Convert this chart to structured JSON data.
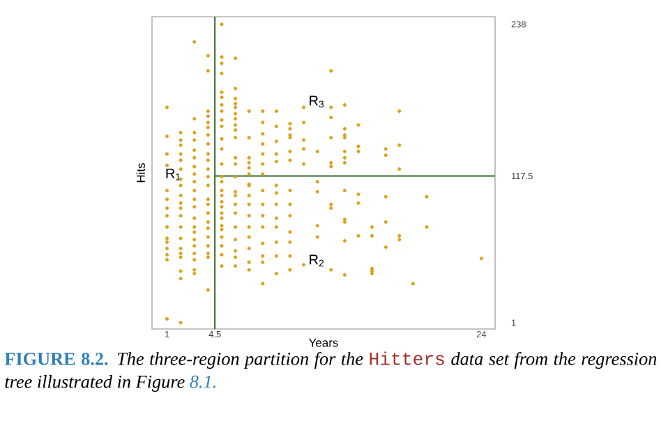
{
  "chart_data": {
    "type": "scatter",
    "xlabel": "Years",
    "ylabel": "Hits",
    "xlim": [
      -0.1,
      25
    ],
    "ylim": [
      -4,
      244
    ],
    "xticks": [
      1,
      4.5,
      24
    ],
    "yticks": [
      1,
      117.5,
      238
    ],
    "series": [
      {
        "color": "#d9a21b",
        "x": [
          1,
          1,
          1,
          1,
          1,
          1,
          1,
          1,
          1,
          1,
          1,
          1,
          1,
          1,
          1,
          2,
          2,
          2,
          2,
          2,
          2,
          2,
          2,
          2,
          2,
          2,
          2,
          2,
          2,
          2,
          2,
          2,
          2,
          2,
          2,
          3,
          3,
          3,
          3,
          3,
          3,
          3,
          3,
          3,
          3,
          3,
          3,
          3,
          3,
          3,
          3,
          3,
          3,
          3,
          3,
          3,
          4,
          4,
          4,
          4,
          4,
          4,
          4,
          4,
          4,
          4,
          4,
          4,
          4,
          4,
          4,
          4,
          4,
          4,
          4,
          4,
          4,
          4,
          4,
          5,
          5,
          5,
          5,
          5,
          5,
          5,
          5,
          5,
          5,
          5,
          5,
          5,
          5,
          5,
          5,
          5,
          5,
          5,
          5,
          5,
          5,
          5,
          5,
          5,
          5,
          5,
          6,
          6,
          6,
          6,
          6,
          6,
          6,
          6,
          6,
          6,
          6,
          6,
          6,
          6,
          6,
          6,
          6,
          6,
          6,
          6,
          6,
          6,
          7,
          7,
          7,
          7,
          7,
          7,
          7,
          7,
          7,
          7,
          7,
          7,
          7,
          7,
          7,
          7,
          8,
          8,
          8,
          8,
          8,
          8,
          8,
          8,
          8,
          8,
          8,
          8,
          8,
          8,
          8,
          9,
          9,
          9,
          9,
          9,
          9,
          9,
          9,
          9,
          9,
          9,
          9,
          9,
          10,
          10,
          10,
          10,
          10,
          10,
          10,
          10,
          10,
          10,
          10,
          10,
          10,
          11,
          11,
          11,
          11,
          11,
          11,
          12,
          12,
          12,
          12,
          12,
          13,
          13,
          13,
          13,
          13,
          13,
          13,
          13,
          13,
          14,
          14,
          14,
          14,
          14,
          14,
          14,
          14,
          14,
          14,
          14,
          14,
          15,
          15,
          15,
          15,
          15,
          15,
          16,
          16,
          16,
          16,
          16,
          17,
          17,
          17,
          17,
          17,
          18,
          18,
          18,
          18,
          18,
          19,
          20,
          20,
          24
        ],
        "values": [
          172,
          149,
          135,
          126,
          106,
          99,
          92,
          86,
          77,
          68,
          65,
          60,
          55,
          51,
          4,
          152,
          146,
          142,
          135,
          130,
          123,
          115,
          110,
          102,
          96,
          92,
          86,
          77,
          68,
          60,
          56,
          53,
          42,
          36,
          1,
          224,
          163,
          152,
          146,
          138,
          132,
          125,
          119,
          113,
          106,
          99,
          93,
          84,
          77,
          73,
          67,
          62,
          56,
          51,
          43,
          40,
          213,
          201,
          169,
          165,
          160,
          156,
          150,
          143,
          135,
          130,
          123,
          117,
          110,
          99,
          95,
          88,
          81,
          76,
          69,
          62,
          56,
          53,
          27,
          238,
          212,
          207,
          199,
          184,
          180,
          174,
          169,
          162,
          157,
          147,
          139,
          127,
          117,
          113,
          106,
          102,
          97,
          93,
          88,
          84,
          78,
          75,
          69,
          62,
          55,
          46,
          211,
          187,
          179,
          175,
          172,
          167,
          163,
          158,
          154,
          148,
          132,
          127,
          117,
          105,
          102,
          95,
          88,
          77,
          67,
          58,
          53,
          46,
          169,
          148,
          132,
          128,
          124,
          119,
          111,
          110,
          102,
          95,
          86,
          77,
          69,
          60,
          49,
          43,
          169,
          160,
          151,
          143,
          135,
          127,
          119,
          106,
          95,
          86,
          77,
          64,
          54,
          49,
          32,
          169,
          157,
          145,
          135,
          129,
          110,
          104,
          95,
          84,
          77,
          65,
          54,
          40,
          159,
          155,
          150,
          148,
          137,
          130,
          106,
          95,
          86,
          73,
          65,
          54,
          43,
          172,
          160,
          146,
          139,
          127,
          47,
          137,
          113,
          105,
          78,
          69,
          201,
          172,
          164,
          148,
          128,
          125,
          95,
          92,
          43,
          174,
          155,
          150,
          148,
          137,
          132,
          128,
          106,
          83,
          81,
          66,
          39,
          158,
          141,
          137,
          103,
          96,
          70,
          77,
          70,
          44,
          42,
          40,
          139,
          134,
          101,
          81,
          61,
          169,
          142,
          123,
          70,
          67,
          32,
          101,
          77,
          52
        ]
      }
    ],
    "ref_lines": [
      {
        "axis": "x",
        "value": 4.5,
        "color": "#2e6b2e"
      },
      {
        "axis": "y",
        "value": 117.5,
        "color": "#2e6b2e"
      }
    ],
    "annotations": [
      "R$_{1}$",
      "R$_{2}$",
      "R$_{3}$",
      "FIGURE 8.2.",
      "The three-region partition for the",
      "Hitters",
      "data set from the regression tree illustrated in Figure",
      "8.1."
    ]
  }
}
